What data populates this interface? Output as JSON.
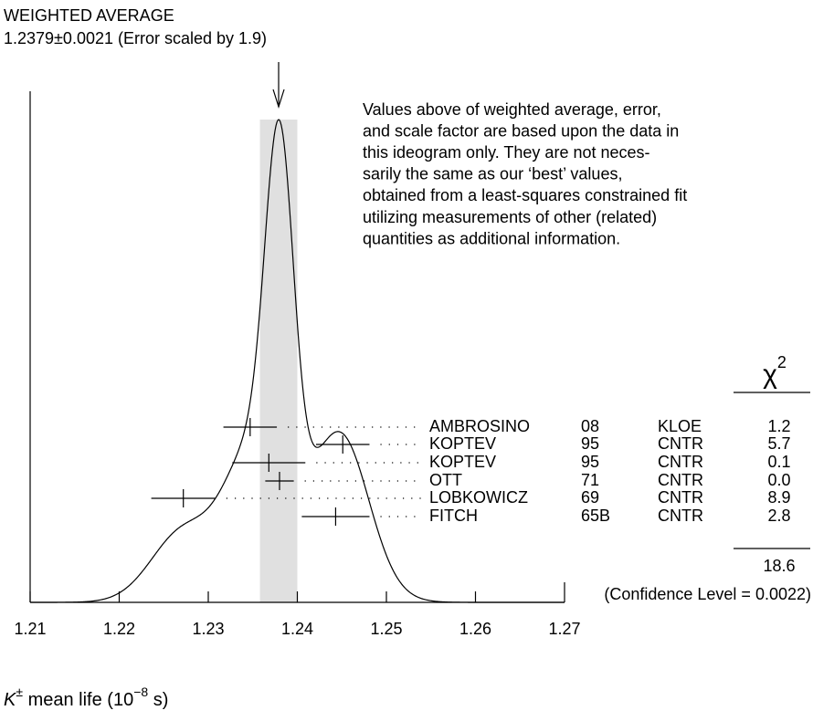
{
  "chart_data": {
    "type": "ideogram",
    "title": "WEIGHTED AVERAGE",
    "subtitle": "1.2379±0.0021 (Error scaled by 1.9)",
    "average": 1.2379,
    "error": 0.0021,
    "note": [
      "Values above of weighted average, error,",
      "and scale factor are based upon the data in",
      "this ideogram only.  They are not neces-",
      "sarily the same as our ‘best’ values,",
      "obtained from a least-squares constrained fit",
      "utilizing measurements of other (related)",
      "quantities as additional information."
    ],
    "chi2_header": [
      "χ",
      "2"
    ],
    "measurements": {
      "names": [
        "AMBROSINO",
        "KOPTEV",
        "KOPTEV",
        "OTT",
        "LOBKOWICZ",
        "FITCH"
      ],
      "years": [
        "08",
        "95",
        "95",
        "71",
        "69",
        "65B"
      ],
      "techniques": [
        "KLOE",
        "CNTR",
        "CNTR",
        "CNTR",
        "CNTR",
        "CNTR"
      ],
      "values": [
        1.2347,
        1.2451,
        1.2368,
        1.238,
        1.2272,
        1.2443
      ],
      "errors": [
        0.003,
        0.003,
        0.0041,
        0.0016,
        0.0036,
        0.0038
      ],
      "chi2": [
        1.2,
        5.7,
        0.1,
        0.0,
        8.9,
        2.8
      ],
      "value_labels": [
        "1.2",
        "5.7",
        "0.1",
        "0.0",
        "8.9",
        "2.8"
      ]
    },
    "chi2_total": 18.6,
    "confidence_level": "(Confidence Level = 0.0022)",
    "xlim": [
      1.21,
      1.27
    ],
    "xticks": [
      1.21,
      1.22,
      1.23,
      1.24,
      1.25,
      1.26,
      1.27
    ],
    "x_label": [
      "K",
      "±",
      " mean life (10",
      "−8",
      " s)"
    ],
    "band_color": "#e0e0e0"
  }
}
